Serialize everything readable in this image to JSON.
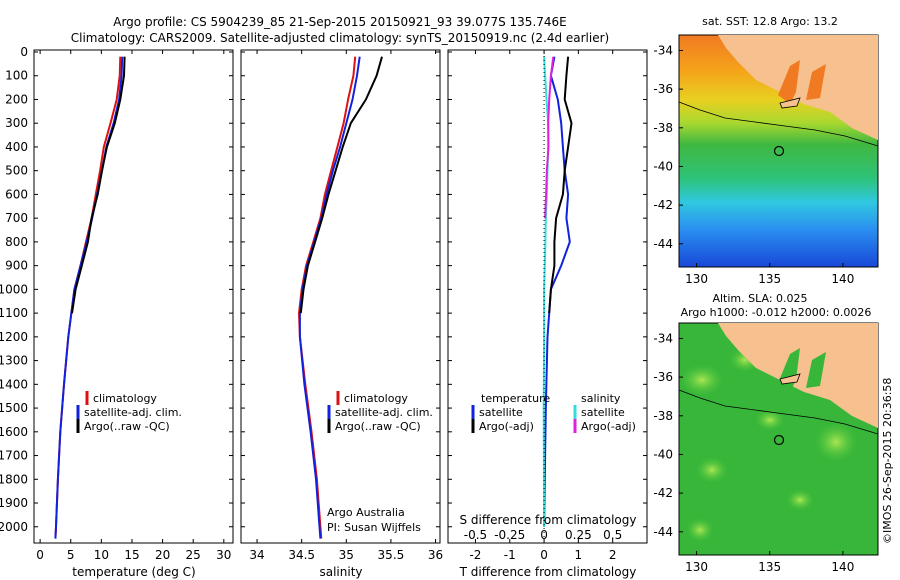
{
  "header": {
    "line1": "Argo profile: CS 5904239_85 21-Sep-2015 20150921_93 39.077S 135.746E",
    "line2": "Climatology: CARS2009. Satellite-adjusted climatology: synTS_20150919.nc (2.4d earlier)"
  },
  "colors": {
    "climatology": "#dd1111",
    "satellite": "#1122dd",
    "argo": "#000000",
    "cyan": "#33dddd",
    "magenta": "#dd22dd",
    "land": "#f7c08f"
  },
  "depth_ticks": [
    "0",
    "100",
    "200",
    "300",
    "400",
    "500",
    "600",
    "700",
    "800",
    "900",
    "1000",
    "1100",
    "1200",
    "1300",
    "1400",
    "1500",
    "1600",
    "1700",
    "1800",
    "1900",
    "2000"
  ],
  "chart_data": [
    {
      "type": "line",
      "panel": "temperature",
      "xlabel": "temperature (deg C)",
      "xlim": [
        -1,
        31.5
      ],
      "ylim": [
        2060,
        0
      ],
      "x_ticks": [
        "0",
        "5",
        "10",
        "15",
        "20",
        "25",
        "30"
      ],
      "legend": [
        "climatology",
        "satellite-adj. clim.",
        "Argo(..raw -QC)"
      ],
      "series": [
        {
          "name": "climatology",
          "depth": [
            20,
            100,
            200,
            300,
            400,
            500,
            600,
            700,
            800,
            900,
            1000,
            1200,
            1400,
            1600,
            1800,
            2000,
            2050
          ],
          "values": [
            13.1,
            13.0,
            12.5,
            11.5,
            10.4,
            9.8,
            9.1,
            8.4,
            7.5,
            6.6,
            5.6,
            4.6,
            3.9,
            3.3,
            2.9,
            2.6,
            2.5
          ]
        },
        {
          "name": "satellite-adj. clim.",
          "depth": [
            20,
            100,
            200,
            300,
            400,
            500,
            600,
            700,
            800,
            900,
            1000,
            1200,
            1400,
            1600,
            1800,
            2000,
            2050
          ],
          "values": [
            13.4,
            13.3,
            12.9,
            12.0,
            10.8,
            10.1,
            9.3,
            8.5,
            7.6,
            6.6,
            5.6,
            4.6,
            3.9,
            3.3,
            2.9,
            2.6,
            2.5
          ]
        },
        {
          "name": "Argo(..raw -QC)",
          "depth": [
            20,
            100,
            200,
            300,
            400,
            500,
            600,
            700,
            800,
            900,
            1000,
            1100
          ],
          "values": [
            13.8,
            13.7,
            13.1,
            12.2,
            10.9,
            10.1,
            9.4,
            8.4,
            7.8,
            6.8,
            5.8,
            5.2
          ]
        }
      ]
    },
    {
      "type": "line",
      "panel": "salinity",
      "xlabel": "salinity",
      "xlim": [
        33.82,
        36.05
      ],
      "ylim": [
        2060,
        0
      ],
      "x_ticks": [
        "34",
        "34.5",
        "35",
        "35.5",
        "36"
      ],
      "legend": [
        "climatology",
        "satellite-adj. clim.",
        "Argo(..raw -QC)"
      ],
      "annotation": [
        "Argo Australia",
        "PI: Susan Wijffels"
      ],
      "series": [
        {
          "name": "climatology",
          "depth": [
            20,
            100,
            200,
            300,
            400,
            500,
            600,
            700,
            800,
            900,
            1000,
            1100,
            1200,
            1400,
            1600,
            1800,
            2000,
            2050
          ],
          "values": [
            35.1,
            35.08,
            35.02,
            34.97,
            34.9,
            34.83,
            34.76,
            34.71,
            34.63,
            34.55,
            34.5,
            34.47,
            34.48,
            34.54,
            34.61,
            34.67,
            34.71,
            34.72
          ]
        },
        {
          "name": "satellite-adj. clim.",
          "depth": [
            20,
            100,
            200,
            300,
            400,
            500,
            600,
            700,
            800,
            900,
            1000,
            1100,
            1200,
            1400,
            1600,
            1800,
            2000,
            2050
          ],
          "values": [
            35.15,
            35.12,
            35.07,
            35.0,
            34.93,
            34.85,
            34.78,
            34.72,
            34.64,
            34.56,
            34.51,
            34.48,
            34.48,
            34.53,
            34.6,
            34.66,
            34.7,
            34.71
          ]
        },
        {
          "name": "Argo(..raw -QC)",
          "depth": [
            20,
            100,
            200,
            300,
            400,
            500,
            600,
            700,
            800,
            900,
            1000,
            1100
          ],
          "values": [
            35.4,
            35.34,
            35.22,
            35.05,
            34.96,
            34.88,
            34.8,
            34.73,
            34.65,
            34.57,
            34.52,
            34.49
          ]
        }
      ]
    },
    {
      "type": "line",
      "panel": "difference",
      "xlabel": "T difference from climatology",
      "xlabel_top": "S difference from climatology",
      "xlim": [
        -2.8,
        3
      ],
      "ylim": [
        2060,
        0
      ],
      "x_ticks": [
        "-2",
        "-1",
        "0",
        "1",
        "2"
      ],
      "x_ticks_top": [
        "-0.5",
        "-0.25",
        "0",
        "0.25",
        "0.5"
      ],
      "legend_temperature": {
        "title": "temperature",
        "entries": [
          "satellite",
          "Argo(-adj)"
        ]
      },
      "legend_salinity": {
        "title": "salinity",
        "entries": [
          "satellite",
          "Argo(-adj)"
        ]
      },
      "series": [
        {
          "name": "temperature satellite",
          "depth": [
            20,
            100,
            200,
            300,
            400,
            500,
            600,
            700,
            800,
            900,
            1000,
            1200,
            1500,
            2000
          ],
          "values": [
            0.3,
            0.2,
            0.4,
            0.5,
            0.55,
            0.6,
            0.7,
            0.65,
            0.75,
            0.5,
            0.2,
            0.1,
            0.05,
            0.0
          ]
        },
        {
          "name": "temperature Argo(-adj)",
          "depth": [
            20,
            100,
            200,
            300,
            400,
            500,
            600,
            700,
            800,
            900,
            1000,
            1100
          ],
          "values": [
            0.7,
            0.65,
            0.6,
            0.8,
            0.7,
            0.6,
            0.55,
            0.35,
            0.3,
            0.3,
            0.2,
            0.15
          ]
        },
        {
          "name": "salinity satellite",
          "depth": [
            20,
            100,
            200,
            300,
            400,
            500,
            600,
            700,
            800,
            900,
            1000,
            1200,
            1500,
            2000
          ],
          "values": [
            0.0,
            0.03,
            0.07,
            0.12,
            0.12,
            0.1,
            0.08,
            0.05,
            0.04,
            0.02,
            0.0,
            0.0,
            -0.01,
            0.0
          ]
        },
        {
          "name": "salinity Argo(-adj)",
          "depth": [
            20,
            100,
            200,
            300,
            400,
            500,
            600,
            700
          ],
          "values": [
            0.27,
            0.2,
            0.15,
            0.12,
            0.13,
            0.08,
            0.06,
            0.03
          ]
        }
      ]
    }
  ],
  "maps": {
    "sst": {
      "title": "sat. SST: 12.8  Argo: 13.2",
      "x_ticks": [
        "130",
        "135",
        "140"
      ],
      "y_ticks": [
        "-34",
        "-36",
        "-38",
        "-40",
        "-42",
        "-44"
      ]
    },
    "sla": {
      "title1": "Altim. SLA: 0.025",
      "title2": "Argo h1000: -0.012 h2000: 0.0026",
      "x_ticks": [
        "130",
        "135",
        "140"
      ],
      "y_ticks": [
        "-34",
        "-36",
        "-38",
        "-40",
        "-42",
        "-44"
      ]
    }
  },
  "credit": "©IMOS 26-Sep-2015 20:36:58"
}
